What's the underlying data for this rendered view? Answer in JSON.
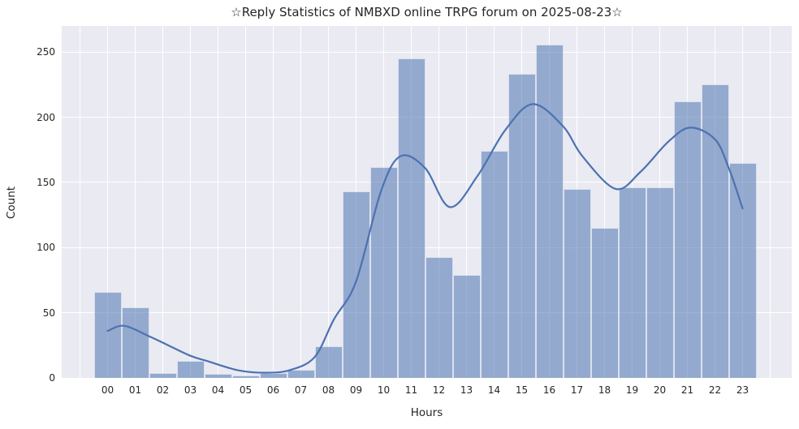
{
  "chart_data": {
    "type": "bar",
    "title": "☆Reply Statistics of NMBXD online TRPG forum on 2025-08-23☆",
    "xlabel": "Hours",
    "ylabel": "Count",
    "categories": [
      "00",
      "01",
      "02",
      "03",
      "04",
      "05",
      "06",
      "07",
      "08",
      "09",
      "10",
      "11",
      "12",
      "13",
      "14",
      "15",
      "16",
      "17",
      "18",
      "19",
      "20",
      "21",
      "22",
      "23"
    ],
    "values": [
      66,
      54,
      4,
      13,
      3,
      2,
      4,
      6,
      24,
      143,
      162,
      245,
      93,
      79,
      174,
      233,
      256,
      145,
      115,
      146,
      146,
      212,
      225,
      165
    ],
    "yticks": [
      0,
      50,
      100,
      150,
      200,
      250
    ],
    "ylim": [
      0,
      270
    ],
    "grid": true,
    "legend": false,
    "overlays": {
      "kde_line": {
        "description": "smooth density curve over histogram",
        "points_hour_count": [
          [
            0,
            36
          ],
          [
            0.6,
            40
          ],
          [
            1.5,
            32
          ],
          [
            2.1,
            26
          ],
          [
            3,
            17
          ],
          [
            3.6,
            13
          ],
          [
            4.7,
            6
          ],
          [
            5.7,
            4
          ],
          [
            6.6,
            6
          ],
          [
            7.5,
            16
          ],
          [
            8.2,
            45
          ],
          [
            9,
            74
          ],
          [
            9.9,
            143
          ],
          [
            10.6,
            170
          ],
          [
            11.5,
            161
          ],
          [
            12.4,
            131
          ],
          [
            13.4,
            155
          ],
          [
            14.4,
            190
          ],
          [
            15.4,
            210
          ],
          [
            16.5,
            193
          ],
          [
            17.2,
            170
          ],
          [
            18.4,
            145
          ],
          [
            19.3,
            158
          ],
          [
            20.3,
            181
          ],
          [
            21.1,
            192
          ],
          [
            22,
            183
          ],
          [
            22.5,
            161
          ],
          [
            23,
            130
          ]
        ]
      }
    },
    "colors": {
      "bar_fill_rgba": "rgba(76,114,176,0.55)",
      "bar_edge": "#ffffff",
      "kde_line": "#4c72b0",
      "plot_background": "#eaeaf2",
      "gridline": "#ffffff",
      "text": "#262626",
      "figure_background": "#ffffff"
    }
  }
}
